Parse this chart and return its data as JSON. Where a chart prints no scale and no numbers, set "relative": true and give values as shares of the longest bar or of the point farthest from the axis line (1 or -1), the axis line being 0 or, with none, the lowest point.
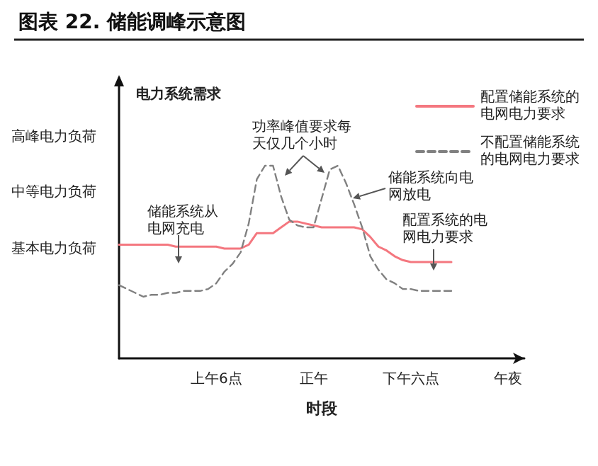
{
  "chart_data": {
    "type": "line",
    "title": "图表 22. 储能调峰示意图",
    "xlabel": "时段",
    "ylabel": "电力系统需求",
    "relative": true,
    "categories": [
      null,
      null,
      null,
      null,
      null,
      null,
      null,
      null,
      null,
      null,
      null,
      null,
      "上午6点",
      null,
      null,
      null,
      null,
      null,
      null,
      null,
      null,
      null,
      null,
      null,
      "正午",
      null,
      null,
      null,
      null,
      null,
      null,
      null,
      null,
      null,
      null,
      null,
      "下午六点",
      null,
      null,
      null,
      null,
      null,
      null,
      null,
      null,
      null,
      null,
      null,
      "午夜",
      null,
      null
    ],
    "series": [
      {
        "name": "配置储能系统的电网电力要求",
        "color": "#f4777f",
        "line_style": "solid",
        "values": [
          0.59,
          0.59,
          0.59,
          0.59,
          0.59,
          0.59,
          0.59,
          0.58,
          0.58,
          0.58,
          0.58,
          0.58,
          0.58,
          0.57,
          0.57,
          0.57,
          0.59,
          0.65,
          0.65,
          0.65,
          0.68,
          0.71,
          0.71,
          0.7,
          0.69,
          0.68,
          0.68,
          0.68,
          0.68,
          0.68,
          0.67,
          0.63,
          0.58,
          0.56,
          0.53,
          0.51,
          0.5,
          0.5,
          0.5,
          0.5,
          0.5,
          0.5,
          null,
          null,
          null,
          null,
          null,
          null,
          null,
          null,
          null
        ]
      },
      {
        "name": "不配置储能系统的电网电力要求",
        "color": "#808080",
        "line_style": "dashed",
        "values": [
          0.38,
          0.36,
          0.34,
          0.32,
          0.33,
          0.33,
          0.34,
          0.34,
          0.35,
          0.35,
          0.35,
          0.36,
          0.39,
          0.45,
          0.49,
          0.55,
          0.7,
          0.93,
          1.0,
          1.0,
          0.84,
          0.72,
          0.69,
          0.68,
          0.68,
          0.83,
          0.98,
          1.0,
          0.91,
          0.8,
          0.68,
          0.53,
          0.46,
          0.41,
          0.39,
          0.36,
          0.36,
          0.35,
          0.35,
          0.35,
          0.35,
          0.35,
          null,
          null,
          null,
          null,
          null,
          null,
          null,
          null,
          null
        ]
      }
    ],
    "annotations": [
      "功率峰值要求每天仅几个小时",
      "储能系统向电网放电",
      "储能系统从电网充电",
      "配置系统的电网电力要求",
      "高峰电力负荷",
      "中等电力负荷",
      "基本电力负荷"
    ],
    "legend": "top right",
    "grid": false,
    "marker": "none"
  }
}
